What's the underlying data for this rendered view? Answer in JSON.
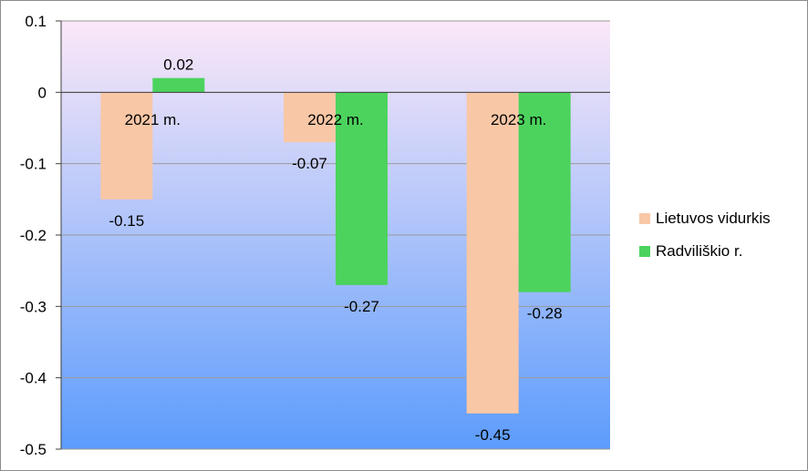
{
  "chart_data": {
    "type": "bar",
    "categories": [
      "2021 m.",
      "2022 m.",
      "2023 m."
    ],
    "series": [
      {
        "name": "Lietuvos vidurkis",
        "values": [
          -0.15,
          -0.07,
          -0.45
        ],
        "color": "#f8c7a6"
      },
      {
        "name": "Radviliškio r.",
        "values": [
          0.02,
          -0.27,
          -0.28
        ],
        "color": "#4cd35d"
      }
    ],
    "data_labels": [
      [
        "-0.15",
        "-0.07",
        "-0.45"
      ],
      [
        "0.02",
        "-0.27",
        "-0.28"
      ]
    ],
    "yticks": [
      "0.1",
      "0",
      "-0.1",
      "-0.2",
      "-0.3",
      "-0.4",
      "-0.5"
    ],
    "ytick_values": [
      0.1,
      0,
      -0.1,
      -0.2,
      -0.3,
      -0.4,
      -0.5
    ],
    "ylim": [
      -0.5,
      0.1
    ],
    "grid": true,
    "legend_position": "right",
    "title": "",
    "xlabel": "",
    "ylabel": "",
    "background_gradient": [
      "#fbe8f8",
      "#5c9cfc"
    ]
  }
}
